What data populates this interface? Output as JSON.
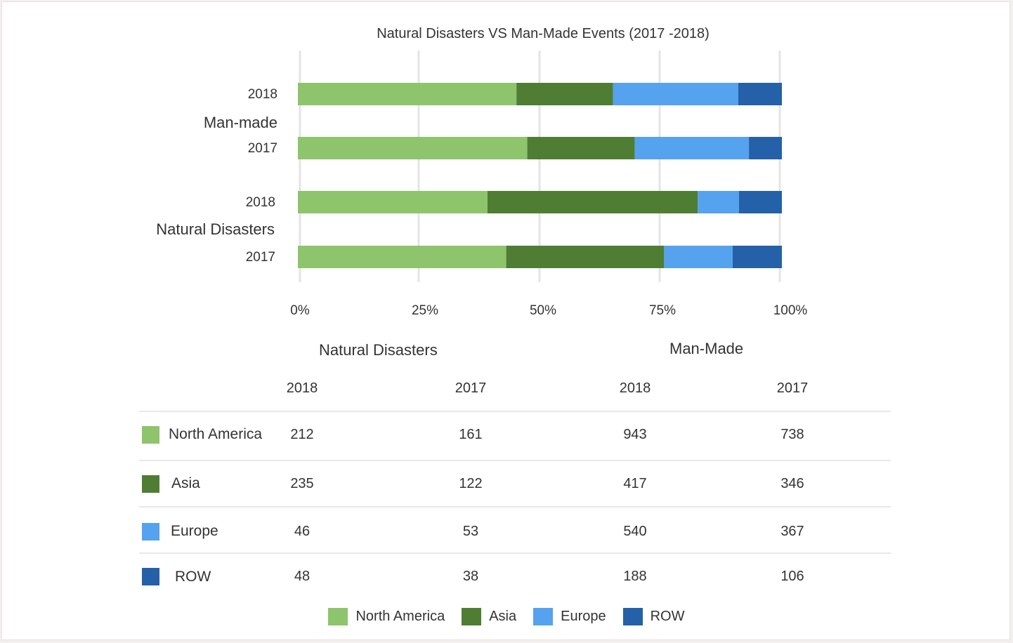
{
  "chart_data": {
    "type": "bar",
    "orientation": "horizontal",
    "stacked": "percent",
    "title": "Natural Disasters VS Man-Made Events (2017 -2018)",
    "groups": [
      {
        "label": "Man-made",
        "bars": [
          "2018",
          "2017"
        ]
      },
      {
        "label": "Natural Disasters",
        "bars": [
          "2018",
          "2017"
        ]
      }
    ],
    "x_ticks": [
      "0%",
      "25%",
      "50%",
      "75%",
      "100%"
    ],
    "xlim": [
      0,
      100
    ],
    "grid": true,
    "legend_position": "bottom",
    "series": [
      {
        "name": "North America",
        "color": "#8ec46b",
        "values": {
          "Man-made": {
            "2018": 943,
            "2017": 738
          },
          "Natural Disasters": {
            "2018": 212,
            "2017": 161
          }
        }
      },
      {
        "name": "Asia",
        "color": "#4f7d33",
        "values": {
          "Man-made": {
            "2018": 417,
            "2017": 346
          },
          "Natural Disasters": {
            "2018": 235,
            "2017": 122
          }
        }
      },
      {
        "name": "Europe",
        "color": "#55a2ef",
        "values": {
          "Man-made": {
            "2018": 540,
            "2017": 367
          },
          "Natural Disasters": {
            "2018": 46,
            "2017": 53
          }
        }
      },
      {
        "name": "ROW",
        "color": "#2461a8",
        "values": {
          "Man-made": {
            "2018": 188,
            "2017": 106
          },
          "Natural Disasters": {
            "2018": 48,
            "2017": 38
          }
        }
      }
    ]
  },
  "table": {
    "group_headers": [
      "Natural Disasters",
      "Man-Made"
    ],
    "columns": [
      "2018",
      "2017",
      "2018",
      "2017"
    ],
    "rows": [
      {
        "label": "North America",
        "values": [
          "212",
          "161",
          "943",
          "738"
        ]
      },
      {
        "label": "Asia",
        "values": [
          "235",
          "122",
          "417",
          "346"
        ]
      },
      {
        "label": "Europe",
        "values": [
          "46",
          "53",
          "540",
          "367"
        ]
      },
      {
        "label": "ROW",
        "values": [
          "48",
          "38",
          "188",
          "106"
        ]
      }
    ]
  }
}
